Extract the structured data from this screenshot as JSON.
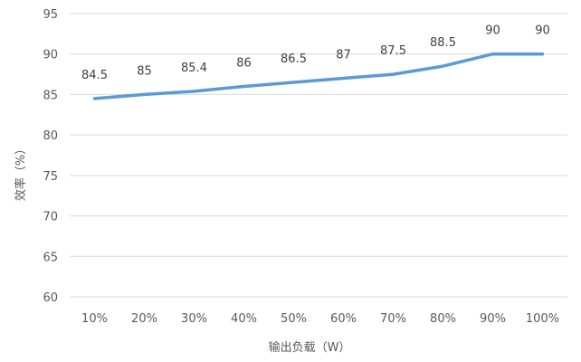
{
  "chart_data": {
    "type": "line",
    "title": "",
    "xlabel": "输出负载（W）",
    "ylabel": "效率（%）",
    "categories": [
      "10%",
      "20%",
      "30%",
      "40%",
      "50%",
      "60%",
      "70%",
      "80%",
      "90%",
      "100%"
    ],
    "series": [
      {
        "values": [
          84.5,
          85,
          85.4,
          86,
          86.5,
          87,
          87.5,
          88.5,
          90,
          90
        ],
        "labels": [
          "84.5",
          "85",
          "85.4",
          "86",
          "86.5",
          "87",
          "87.5",
          "88.5",
          "90",
          "90"
        ],
        "color": "#5B9BD5"
      }
    ],
    "ylim": [
      60,
      95
    ],
    "yticks": [
      60,
      65,
      70,
      75,
      80,
      85,
      90,
      95
    ],
    "ytick_labels": [
      "60",
      "65",
      "70",
      "75",
      "80",
      "85",
      "90",
      "95"
    ],
    "grid": true,
    "gridline_color": "#D9D9D9",
    "legend": "none"
  }
}
